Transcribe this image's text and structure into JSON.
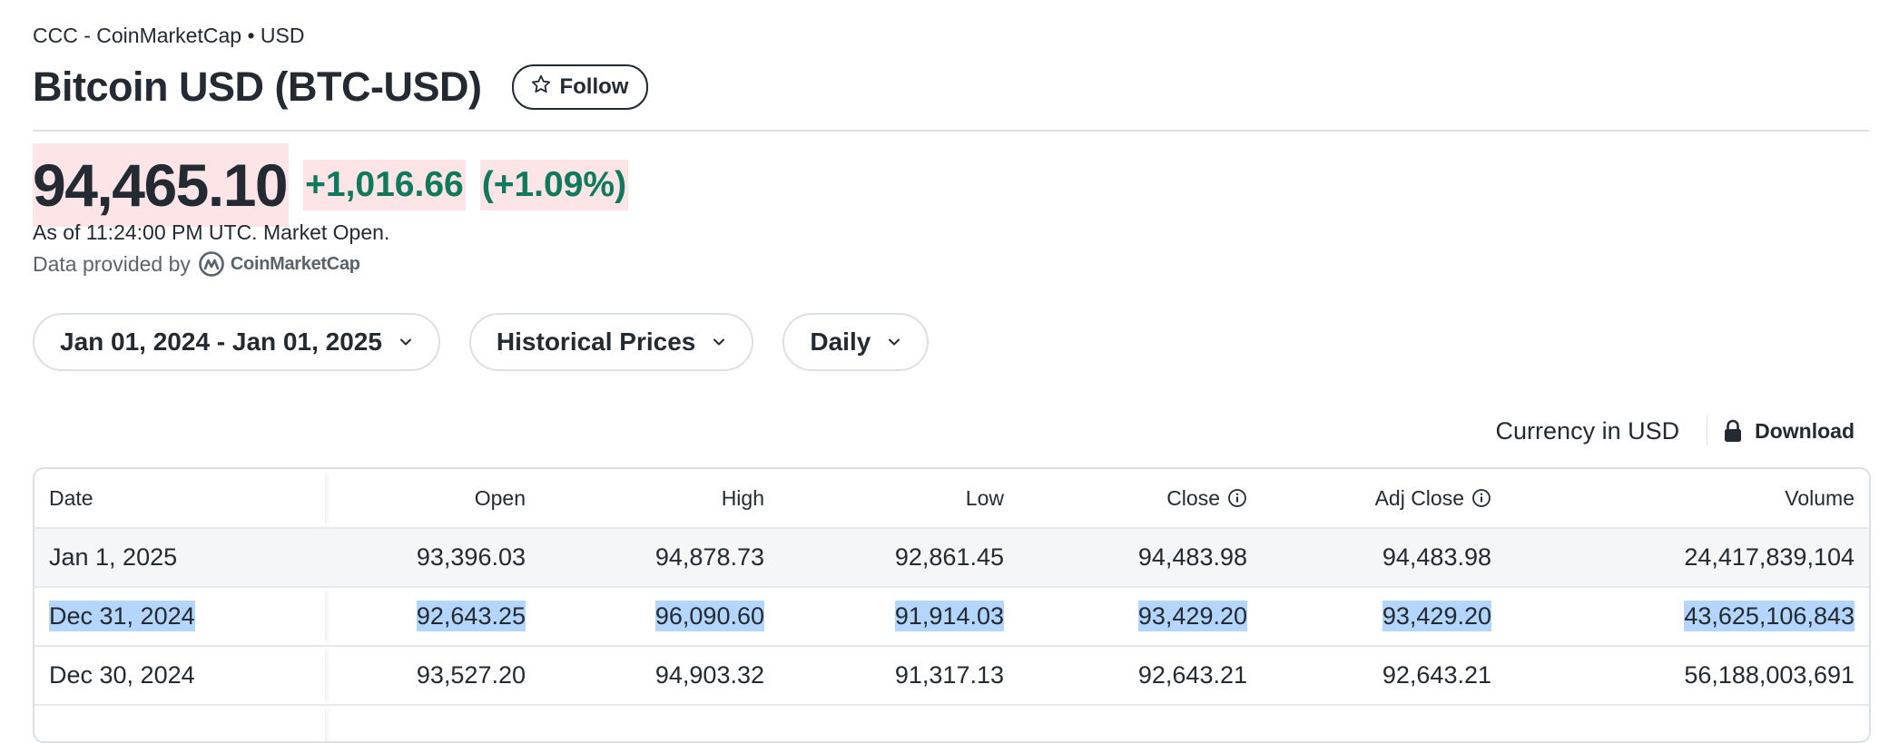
{
  "header": {
    "exchange_line": "CCC - CoinMarketCap • USD",
    "title": "Bitcoin USD (BTC-USD)",
    "follow_label": "Follow"
  },
  "quote": {
    "price": "94,465.10",
    "change": "+1,016.66",
    "change_pct": "(+1.09%)",
    "as_of": "As of 11:24:00 PM UTC. Market Open.",
    "provided_by": "Data provided by",
    "provider_name": "CoinMarketCap",
    "up_color": "#0f7a5b",
    "highlight_color": "#fde4e7"
  },
  "filters": {
    "date_range": "Jan 01, 2024 - Jan 01, 2025",
    "type": "Historical Prices",
    "frequency": "Daily"
  },
  "table_tools": {
    "currency": "Currency in USD",
    "download": "Download"
  },
  "table": {
    "columns": [
      "Date",
      "Open",
      "High",
      "Low",
      "Close",
      "Adj Close",
      "Volume"
    ],
    "rows": [
      [
        "Jan 1, 2025",
        "93,396.03",
        "94,878.73",
        "92,861.45",
        "94,483.98",
        "94,483.98",
        "24,417,839,104"
      ],
      [
        "Dec 31, 2024",
        "92,643.25",
        "96,090.60",
        "91,914.03",
        "93,429.20",
        "93,429.20",
        "43,625,106,843"
      ],
      [
        "Dec 30, 2024",
        "93,527.20",
        "94,903.32",
        "91,317.13",
        "92,643.21",
        "92,643.21",
        "56,188,003,691"
      ]
    ],
    "selected_row": 1,
    "selection_color": "#b4d5fe"
  }
}
